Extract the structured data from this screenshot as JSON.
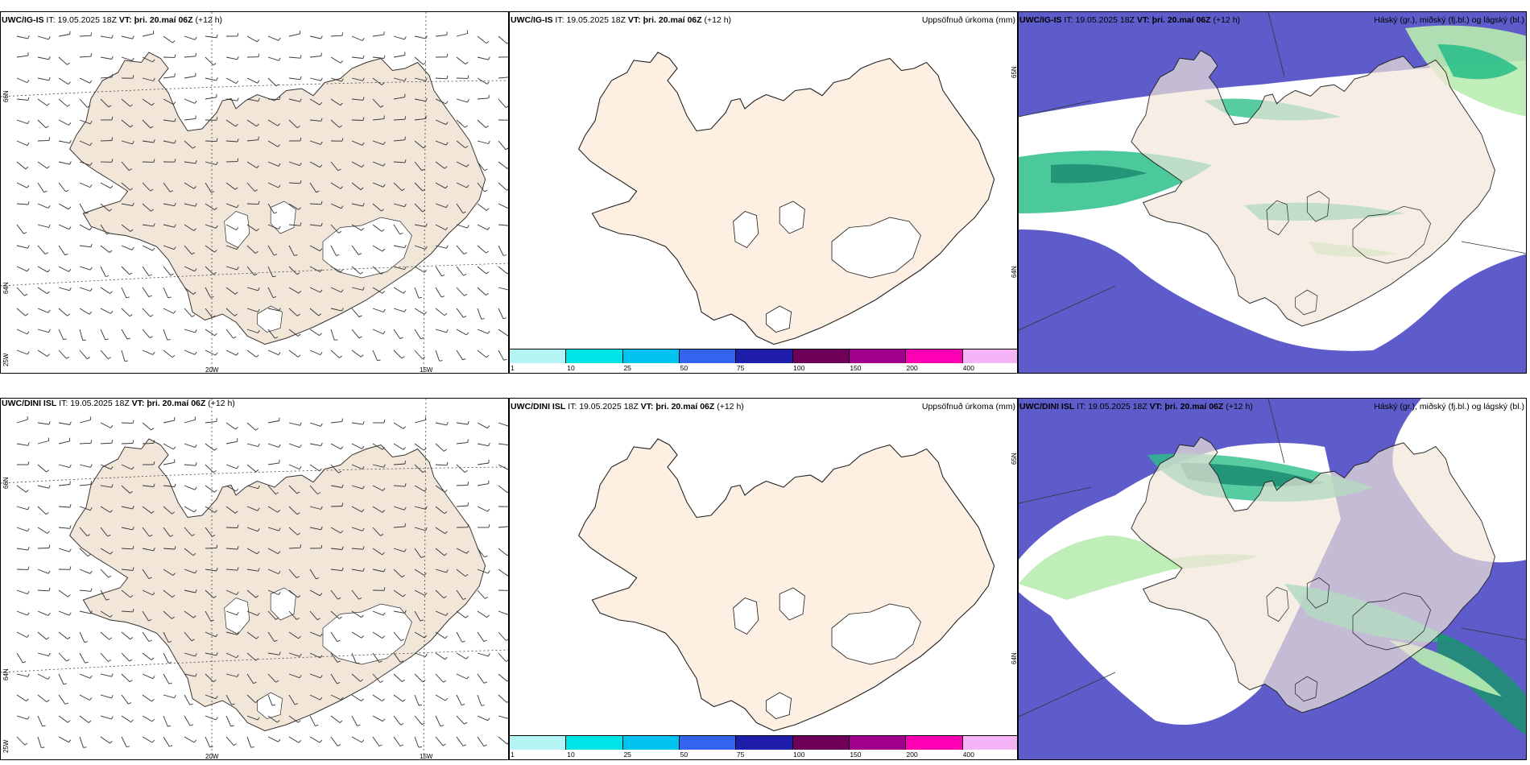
{
  "rows": [
    {
      "model": "UWC/IG-IS",
      "panels": [
        {
          "title_model": "UWC/IG-IS",
          "it_label": "IT:",
          "it_value": "19.05.2025 18Z",
          "vt_label": "VT:",
          "vt_value": "þri. 20.maí 06Z",
          "lead": "(+12 h)",
          "right_title": ""
        },
        {
          "title_model": "UWC/IG-IS",
          "it_label": "IT:",
          "it_value": "19.05.2025 18Z",
          "vt_label": "VT:",
          "vt_value": "þri. 20.maí 06Z",
          "lead": "(+12 h)",
          "right_title": "Uppsöfnuð úrkoma (mm)"
        },
        {
          "title_model": "UWC/IG-IS",
          "it_label": "IT:",
          "it_value": "19.05.2025 18Z",
          "vt_label": "VT:",
          "vt_value": "þri. 20.maí 06Z",
          "lead": "(+12 h)",
          "right_title": "Háský (gr.), miðský (fj.bl.) og lágský (bl.)"
        }
      ]
    },
    {
      "model": "UWC/DINI ISL",
      "panels": [
        {
          "title_model": "UWC/DINI ISL",
          "it_label": "IT:",
          "it_value": "19.05.2025 18Z",
          "vt_label": "VT:",
          "vt_value": "þri. 20.maí 06Z",
          "lead": "(+12 h)",
          "right_title": ""
        },
        {
          "title_model": "UWC/DINI ISL",
          "it_label": "IT:",
          "it_value": "19.05.2025 18Z",
          "vt_label": "VT:",
          "vt_value": "þri. 20.maí 06Z",
          "lead": "(+12 h)",
          "right_title": "Uppsöfnuð úrkoma (mm)"
        },
        {
          "title_model": "UWC/DINI ISL",
          "it_label": "IT:",
          "it_value": "19.05.2025 18Z",
          "vt_label": "VT:",
          "vt_value": "þri. 20.maí 06Z",
          "lead": "(+12 h)",
          "right_title": "Háský (gr.), miðský (fj.bl.) og lágský (bl.)"
        }
      ]
    }
  ],
  "graticule": {
    "lon_labels": [
      "20W",
      "15W"
    ],
    "lat_labels": [
      "66N",
      "64N"
    ],
    "corner_label": "25W"
  },
  "precip_legend": {
    "labels": [
      "1",
      "10",
      "25",
      "50",
      "75",
      "100",
      "150",
      "200",
      "400"
    ],
    "colors": [
      "#b4f5f5",
      "#00e6e6",
      "#00c3f0",
      "#3264f0",
      "#1e1eaa",
      "#6e005a",
      "#a0008c",
      "#ff00b4",
      "#f5b4f5"
    ]
  },
  "colors": {
    "land_wind": "#f2e6d9",
    "land_precip": "#fdf0e3",
    "sea_blue": "#5e5ccb",
    "cloud_green_light": "#b9ecb0",
    "cloud_green": "#2dbf8a",
    "cloud_green_dark": "#1f8f74"
  }
}
